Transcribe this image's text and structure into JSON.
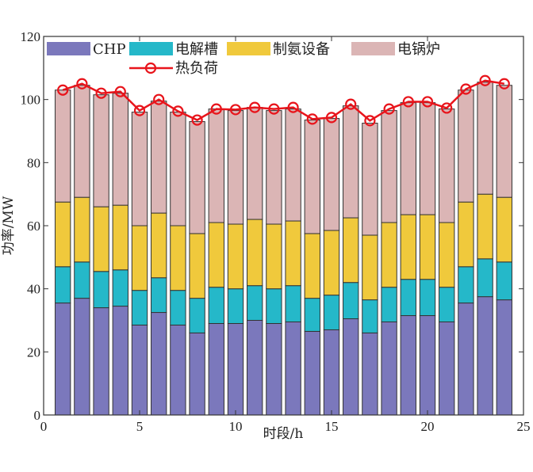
{
  "chart_data": {
    "type": "bar",
    "stacked": true,
    "xlabel": "时段/h",
    "ylabel": "功率/MW",
    "xlim": [
      0,
      25
    ],
    "ylim": [
      0,
      120
    ],
    "xticks": [
      0,
      5,
      10,
      15,
      20,
      25
    ],
    "yticks": [
      0,
      20,
      40,
      60,
      80,
      100,
      120
    ],
    "grid": false,
    "legend_placement": "top-left",
    "x": [
      1,
      2,
      3,
      4,
      5,
      6,
      7,
      8,
      9,
      10,
      11,
      12,
      13,
      14,
      15,
      16,
      17,
      18,
      19,
      20,
      21,
      22,
      23,
      24
    ],
    "series": [
      {
        "name": "CHP",
        "color": "#7b78bc",
        "values": [
          35.5,
          37,
          34,
          34.5,
          28.5,
          32.5,
          28.5,
          26,
          29,
          29,
          30,
          29,
          29.5,
          26.5,
          27,
          30.5,
          26,
          29.5,
          31.5,
          31.5,
          29.5,
          35.5,
          37.5,
          36.5
        ]
      },
      {
        "name": "电解槽",
        "color": "#25b8c9",
        "values": [
          11.5,
          11.5,
          11.5,
          11.5,
          11,
          11,
          11,
          11,
          11.5,
          11,
          11,
          11,
          11.5,
          10.5,
          11,
          11.5,
          10.5,
          11,
          11.5,
          11.5,
          11,
          11.5,
          12,
          12
        ]
      },
      {
        "name": "制氨设备",
        "color": "#f0c93c",
        "values": [
          20.5,
          20.5,
          20.5,
          20.5,
          20.5,
          20.5,
          20.5,
          20.5,
          20.5,
          20.5,
          21,
          20.5,
          20.5,
          20.5,
          20.5,
          20.5,
          20.5,
          20.5,
          20.5,
          20.5,
          20.5,
          20.5,
          20.5,
          20.5
        ]
      },
      {
        "name": "电锅炉",
        "color": "#dbb5b5",
        "values": [
          35.5,
          35.5,
          35.5,
          35.5,
          36,
          35.5,
          36,
          35.5,
          36,
          36,
          35.5,
          36,
          35.5,
          36,
          35.5,
          35.5,
          35.5,
          35.5,
          35.5,
          35.5,
          36,
          35.5,
          35.5,
          35.5
        ]
      }
    ],
    "line_series": {
      "name": "热负荷",
      "color": "#e8141b",
      "marker": "circle",
      "values": [
        103,
        105,
        102,
        102.5,
        96.5,
        100,
        96.3,
        93.5,
        97,
        96.8,
        97.5,
        97,
        97.5,
        93.8,
        94.3,
        98.5,
        93.3,
        97,
        99.3,
        99.3,
        97.3,
        103.3,
        106,
        105
      ]
    }
  }
}
